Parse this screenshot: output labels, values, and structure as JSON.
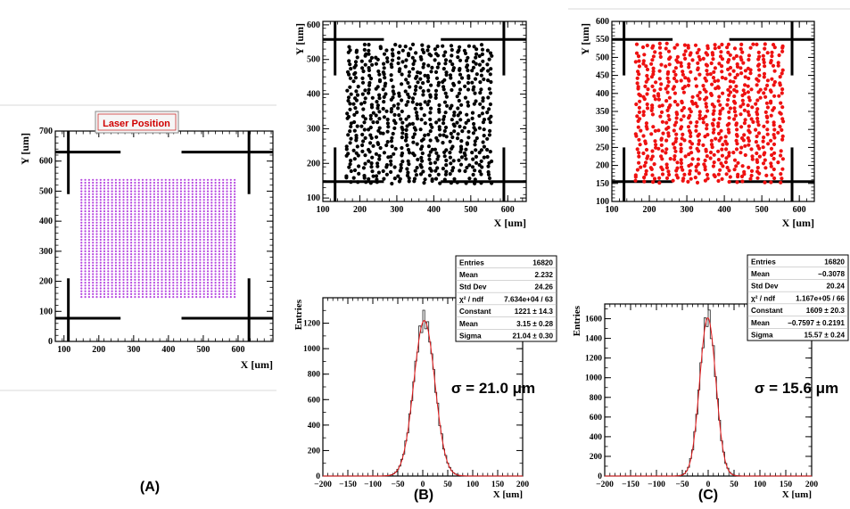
{
  "panels": [
    {
      "id": "A",
      "type": "scatter",
      "title": "Laser Position",
      "xlabel": "X [um]",
      "ylabel": "Y [um]",
      "xlim": [
        75,
        700
      ],
      "ylim": [
        0,
        700
      ],
      "xticks": [
        "100",
        "200",
        "300",
        "400",
        "500",
        "600"
      ],
      "yticks": [
        "0",
        "100",
        "200",
        "300",
        "400",
        "500",
        "600",
        "700"
      ],
      "point_color": "#b545e0",
      "grid": {
        "x_start": 150,
        "x_end": 590,
        "x_step": 11,
        "y_start": 148,
        "y_end": 545,
        "y_step": 9.5
      },
      "caption": "(A)"
    },
    {
      "id": "B-top",
      "type": "scatter",
      "xlabel": "X [um]",
      "ylabel": "Y [um]",
      "xlim": [
        100,
        650
      ],
      "ylim": [
        90,
        610
      ],
      "xticks": [
        "100",
        "200",
        "300",
        "400",
        "500",
        "600"
      ],
      "yticks": [
        "100",
        "200",
        "300",
        "400",
        "500",
        "600"
      ],
      "point_color": "#000000",
      "region": {
        "x": [
          160,
          560
        ],
        "y": [
          140,
          545
        ]
      },
      "seed": 7
    },
    {
      "id": "C-top",
      "type": "scatter",
      "xlabel": "X [um]",
      "ylabel": "Y [um]",
      "xlim": [
        100,
        640
      ],
      "ylim": [
        100,
        600
      ],
      "xticks": [
        "100",
        "200",
        "300",
        "400",
        "500",
        "600"
      ],
      "yticks": [
        "100",
        "150",
        "200",
        "250",
        "300",
        "350",
        "400",
        "450",
        "500",
        "550",
        "600"
      ],
      "point_color": "#ee1111",
      "region": {
        "x": [
          160,
          560
        ],
        "y": [
          150,
          540
        ]
      },
      "seed": 19
    },
    {
      "id": "B-bottom",
      "type": "histogram",
      "xlabel": "X [um]",
      "ylabel": "Entries",
      "xlim": [
        -200,
        200
      ],
      "ylim": [
        0,
        1400
      ],
      "xticks": [
        "−200",
        "−150",
        "−100",
        "−50",
        "0",
        "50",
        "100",
        "150",
        "200"
      ],
      "yticks": [
        "0",
        "200",
        "400",
        "600",
        "800",
        "1000",
        "1200"
      ],
      "fit": {
        "constant": 1221,
        "mean": 3.15,
        "sigma": 21.04
      },
      "annotation": "σ = 21.0 μm",
      "stats": [
        [
          "Entries",
          "16820"
        ],
        [
          "Mean",
          "2.232"
        ],
        [
          "Std Dev",
          "24.26"
        ],
        [
          "χ² / ndf",
          "7.634e+04 / 63"
        ],
        [
          "Constant",
          "1221 ± 14.3"
        ],
        [
          "Mean",
          "3.15 ± 0.28"
        ],
        [
          "Sigma",
          "21.04 ± 0.30"
        ]
      ],
      "caption": "(B)"
    },
    {
      "id": "C-bottom",
      "type": "histogram",
      "xlabel": "X [um]",
      "ylabel": "Entries",
      "xlim": [
        -200,
        200
      ],
      "ylim": [
        0,
        1750
      ],
      "xticks": [
        "−200",
        "−150",
        "−100",
        "−50",
        "0",
        "50",
        "100",
        "150",
        "200"
      ],
      "yticks": [
        "0",
        "200",
        "400",
        "600",
        "800",
        "1000",
        "1200",
        "1400",
        "1600"
      ],
      "fit": {
        "constant": 1609,
        "mean": -0.7597,
        "sigma": 15.57
      },
      "annotation": "σ = 15.6 μm",
      "stats": [
        [
          "Entries",
          "16820"
        ],
        [
          "Mean",
          "−0.3078"
        ],
        [
          "Std Dev",
          "20.24"
        ],
        [
          "χ² / ndf",
          "1.167e+05 / 66"
        ],
        [
          "Constant",
          "1609 ± 20.3"
        ],
        [
          "Mean",
          "−0.7597 ± 0.2191"
        ],
        [
          "Sigma",
          "15.57 ± 0.24"
        ]
      ],
      "caption": "(C)"
    }
  ]
}
